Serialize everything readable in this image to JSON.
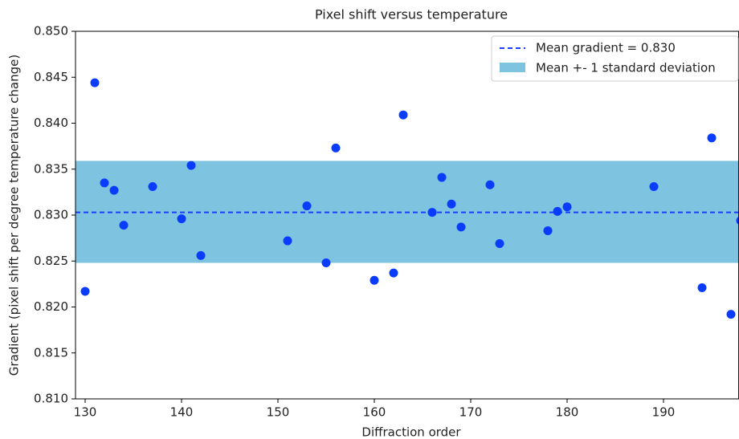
{
  "chart_data": {
    "type": "scatter",
    "title": "Pixel shift versus temperature",
    "xlabel": "Diffraction order",
    "ylabel": "Gradient (pixel shift per degree temperature change)",
    "xlim": [
      129,
      197.8
    ],
    "ylim": [
      0.81,
      0.85
    ],
    "xticks": [
      130,
      140,
      150,
      160,
      170,
      180,
      190
    ],
    "yticks": [
      {
        "value": 0.81,
        "label": "0.810"
      },
      0.815,
      {
        "value": 0.82,
        "label": "0.820"
      },
      0.825,
      {
        "value": 0.83,
        "label": "0.830"
      },
      0.835,
      {
        "value": 0.84,
        "label": "0.840"
      },
      0.845,
      {
        "value": 0.85,
        "label": "0.850"
      }
    ],
    "mean_line": {
      "name": "Mean gradient = 0.830",
      "value": 0.8303,
      "color": "#1a3cff"
    },
    "band": {
      "name": "Mean +- 1 standard deviation",
      "lower": 0.8248,
      "upper": 0.8359,
      "color": "#7ec4e0"
    },
    "series": [
      {
        "color": "#0a3cff",
        "x": [
          130,
          131,
          132,
          133,
          134,
          137,
          140,
          141,
          142,
          151,
          153,
          155,
          156,
          160,
          162,
          163,
          166,
          167,
          168,
          169,
          172,
          173,
          178,
          179,
          180,
          189,
          194,
          195,
          197,
          198
        ],
        "values": [
          0.8217,
          0.8444,
          0.8335,
          0.8327,
          0.8289,
          0.8331,
          0.8296,
          0.8354,
          0.8256,
          0.8272,
          0.831,
          0.8248,
          0.8373,
          0.8229,
          0.8237,
          0.8409,
          0.8303,
          0.8341,
          0.8312,
          0.8287,
          0.8333,
          0.8269,
          0.8283,
          0.8304,
          0.8309,
          0.8331,
          0.8221,
          0.8384,
          0.8192,
          0.8294
        ]
      }
    ],
    "legend": "upper right"
  }
}
